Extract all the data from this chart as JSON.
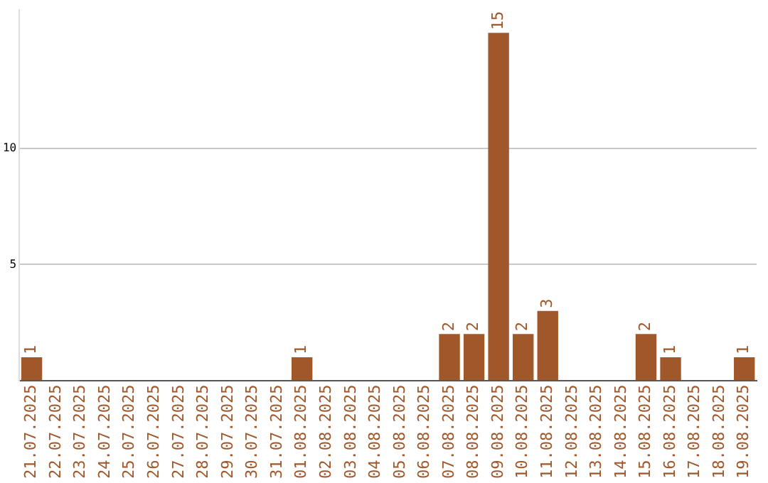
{
  "chart_data": {
    "type": "bar",
    "categories": [
      "21.07.2025",
      "22.07.2025",
      "23.07.2025",
      "24.07.2025",
      "25.07.2025",
      "26.07.2025",
      "27.07.2025",
      "28.07.2025",
      "29.07.2025",
      "30.07.2025",
      "31.07.2025",
      "01.08.2025",
      "02.08.2025",
      "03.08.2025",
      "04.08.2025",
      "05.08.2025",
      "06.08.2025",
      "07.08.2025",
      "08.08.2025",
      "09.08.2025",
      "10.08.2025",
      "11.08.2025",
      "12.08.2025",
      "13.08.2025",
      "14.08.2025",
      "15.08.2025",
      "16.08.2025",
      "17.08.2025",
      "18.08.2025",
      "19.08.2025"
    ],
    "values": [
      1,
      0,
      0,
      0,
      0,
      0,
      0,
      0,
      0,
      0,
      0,
      1,
      0,
      0,
      0,
      0,
      0,
      2,
      2,
      15,
      2,
      3,
      0,
      0,
      0,
      2,
      1,
      0,
      0,
      1
    ],
    "value_labels": [
      "1",
      null,
      null,
      null,
      null,
      null,
      null,
      null,
      null,
      null,
      null,
      "1",
      null,
      null,
      null,
      null,
      null,
      "2",
      "2",
      "15",
      "2",
      "3",
      null,
      null,
      null,
      "2",
      "1",
      null,
      null,
      "1"
    ],
    "color": "#a0572a",
    "ylim": [
      0,
      16
    ],
    "yticks": [
      5,
      10
    ],
    "grid": "y"
  }
}
